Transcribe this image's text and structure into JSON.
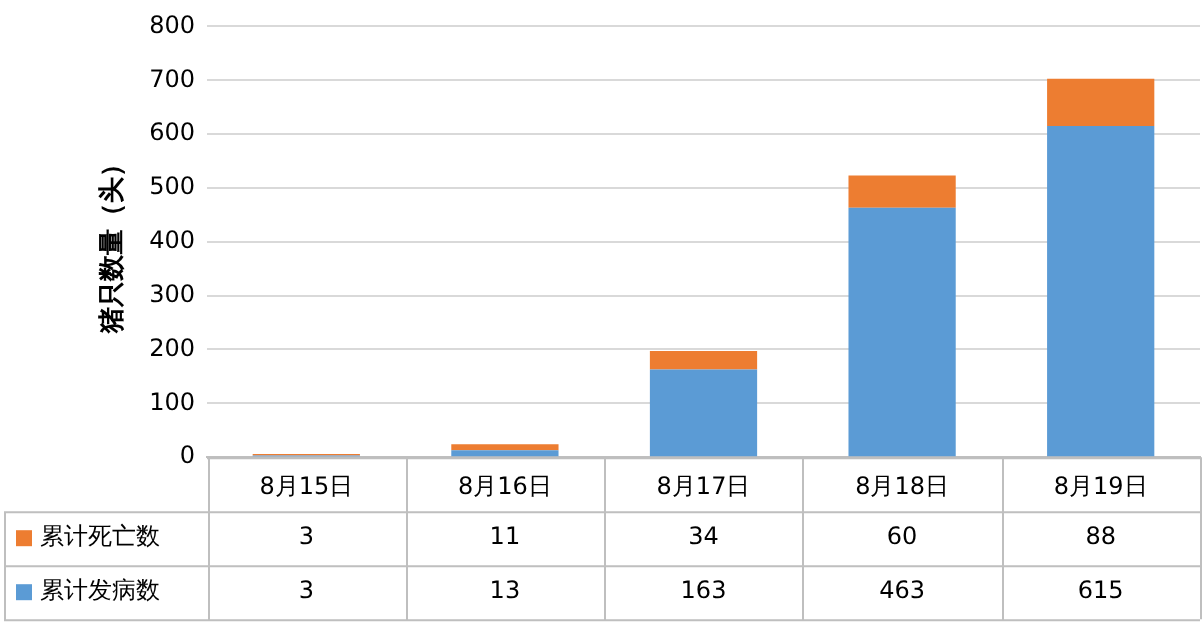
{
  "chart_data": {
    "type": "bar",
    "stacked": true,
    "ylabel": "猪只数量（头）",
    "categories": [
      "8月15日",
      "8月16日",
      "8月17日",
      "8月18日",
      "8月19日"
    ],
    "series": [
      {
        "name": "累计发病数",
        "color": "#5b9bd5",
        "values": [
          3,
          13,
          163,
          463,
          615
        ]
      },
      {
        "name": "累计死亡数",
        "color": "#ed7d31",
        "values": [
          3,
          11,
          34,
          60,
          88
        ]
      }
    ],
    "ylim": [
      0,
      800
    ],
    "yticks": [
      0,
      100,
      200,
      300,
      400,
      500,
      600,
      700,
      800
    ],
    "grid": "y",
    "legend": "bottom left",
    "data_labels": true
  }
}
